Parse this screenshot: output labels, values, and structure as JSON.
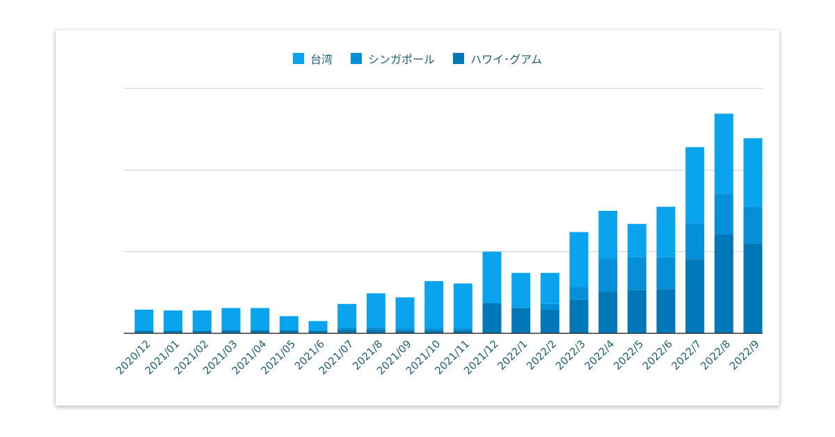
{
  "chart_data": {
    "type": "bar",
    "stacked": true,
    "title": "",
    "xlabel": "",
    "ylabel": "",
    "ylim": [
      0,
      300
    ],
    "grid": true,
    "legend_position": "top-center",
    "categories": [
      "2020/12",
      "2021/01",
      "2021/02",
      "2021/03",
      "2021/04",
      "2021/05",
      "2021/6",
      "2021/07",
      "2021/8",
      "2021/09",
      "2021/10",
      "2021/11",
      "2021/12",
      "2022/1",
      "2022/2",
      "2022/3",
      "2022/4",
      "2022/5",
      "2022/6",
      "2022/7",
      "2022/8",
      "2022/9"
    ],
    "series": [
      {
        "name": "ハワイ･グアム",
        "color": "#0077b6",
        "values": [
          3,
          3,
          3,
          4,
          4,
          4,
          3,
          5,
          5,
          4,
          4,
          4,
          37,
          31,
          29,
          41,
          51,
          53,
          54,
          91,
          121,
          110
        ]
      },
      {
        "name": "シンガポール",
        "color": "#048fd8",
        "values": [
          0,
          0,
          0,
          0,
          0,
          0,
          0,
          2,
          2,
          2,
          2,
          2,
          0,
          0,
          7,
          16,
          41,
          40,
          39,
          44,
          50,
          45
        ]
      },
      {
        "name": "台湾",
        "color": "#0aa3ed",
        "values": [
          26,
          25,
          25,
          27,
          27,
          17,
          12,
          29,
          42,
          38,
          58,
          55,
          63,
          43,
          38,
          67,
          58,
          41,
          62,
          93,
          98,
          84
        ]
      }
    ]
  }
}
